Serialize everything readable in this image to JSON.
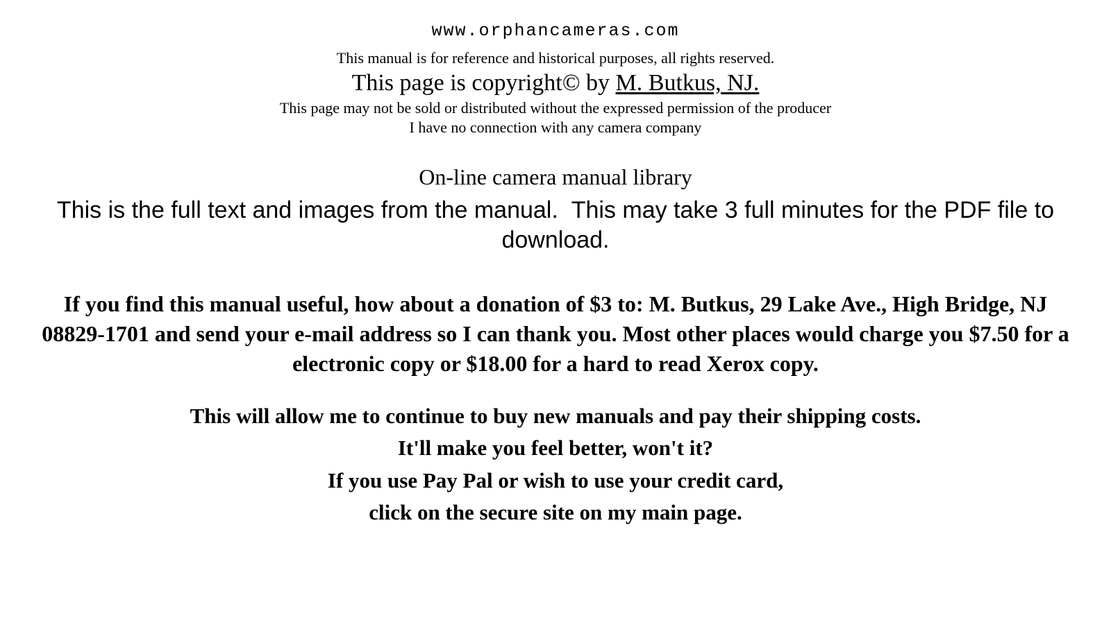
{
  "header": {
    "url": "www.orphancameras.com",
    "rights": "This manual is for reference and historical purposes, all rights reserved.",
    "copyright_prefix": "This page is copyright© by ",
    "copyright_owner": "M. Butkus, NJ.",
    "permission": "This page may not be sold or distributed without the expressed permission of the producer",
    "connection": "I have no connection with any camera company"
  },
  "library": {
    "title": "On-line camera manual library",
    "description": "This is the full text and images from the manual.  This may take 3 full minutes for the PDF file to download."
  },
  "donation": {
    "text": "If you find this manual useful, how about a donation of $3 to: M. Butkus, 29 Lake Ave., High Bridge, NJ 08829-1701 and send your e-mail address so I can thank you. Most other places would charge you $7.50 for a electronic copy or $18.00 for a hard to read Xerox copy."
  },
  "continue": {
    "line1": "This will allow me to continue to buy new manuals and pay their shipping costs.",
    "line2": "It'll make you feel better, won't it?",
    "line3": "If you use Pay Pal or wish to use your credit card,",
    "line4": "click on the secure site on my main page."
  },
  "styles": {
    "background_color": "#ffffff",
    "text_color": "#000000",
    "serif_font": "Times New Roman",
    "sans_font": "Arial",
    "mono_font": "Courier New"
  }
}
